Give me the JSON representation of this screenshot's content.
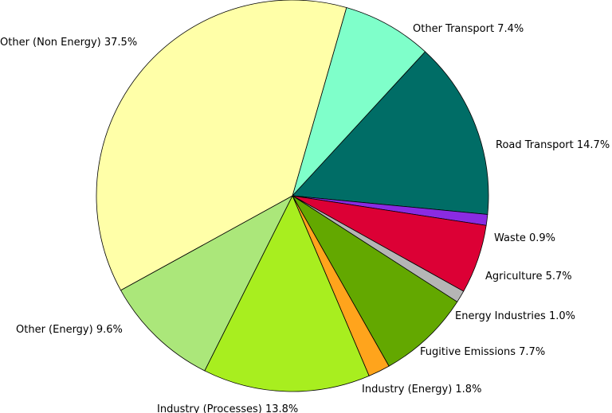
{
  "chart_data": {
    "type": "pie",
    "start_angle_deg": -74,
    "direction": "clockwise",
    "slices": [
      {
        "label": "Other Transport",
        "value": 7.4,
        "label_text": "Other Transport 7.4%",
        "color": "#7fffca"
      },
      {
        "label": "Road Transport",
        "value": 14.7,
        "label_text": "Road Transport 14.7%",
        "color": "#006d66"
      },
      {
        "label": "Waste",
        "value": 0.9,
        "label_text": "Waste 0.9%",
        "color": "#8a2be2"
      },
      {
        "label": "Agriculture",
        "value": 5.7,
        "label_text": "Agriculture 5.7%",
        "color": "#dc0035"
      },
      {
        "label": "Energy Industries",
        "value": 1.0,
        "label_text": "Energy Industries 1.0%",
        "color": "#b5b5b5"
      },
      {
        "label": "Fugitive Emissions",
        "value": 7.7,
        "label_text": "Fugitive Emissions 7.7%",
        "color": "#63a800"
      },
      {
        "label": "Industry (Energy)",
        "value": 1.8,
        "label_text": "Industry (Energy) 1.8%",
        "color": "#ffa41c"
      },
      {
        "label": "Industry (Processes)",
        "value": 13.8,
        "label_text": "Industry (Processes) 13.8%",
        "color": "#a8ee1f"
      },
      {
        "label": "Other (Energy)",
        "value": 9.6,
        "label_text": "Other (Energy) 9.6%",
        "color": "#abe77a"
      },
      {
        "label": "Other (Non Energy)",
        "value": 37.5,
        "label_text": "Other (Non Energy) 37.5%",
        "color": "#ffffa8"
      }
    ]
  }
}
